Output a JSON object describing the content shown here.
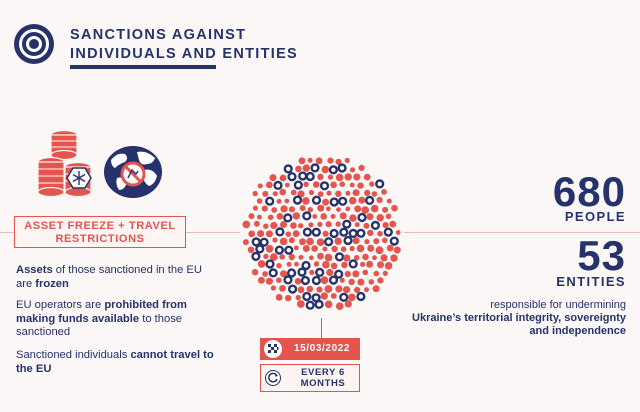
{
  "header": {
    "title_line1": "SANCTIONS AGAINST",
    "title_line2": "INDIVIDUALS AND ENTITIES"
  },
  "icons": {
    "target": "target-icon",
    "coins": "frozen-coins-icon",
    "globe": "travel-ban-globe-icon",
    "flag": "checkered-flag-icon",
    "renew": "renew-cycle-icon"
  },
  "measure": {
    "label_line1": "ASSET FREEZE + TRAVEL",
    "label_line2": "RESTRICTIONS"
  },
  "details": [
    {
      "bold1": "Assets",
      "text1": " of those sanctioned in the EU are ",
      "bold2": "frozen",
      "text2": ""
    },
    {
      "bold1": "",
      "text1": "EU operators are ",
      "bold2": "prohibited from making funds available",
      "text2": " to those sanctioned"
    },
    {
      "bold1": "",
      "text1": "Sanctioned individuals ",
      "bold2": "cannot travel to the EU",
      "text2": ""
    }
  ],
  "timeline": {
    "date": "15/03/2022",
    "renewal": "EVERY 6 MONTHS"
  },
  "stats": {
    "people_count": "680",
    "people_label": "PEOPLE",
    "entities_count": "53",
    "entities_label": "ENTITIES",
    "responsibility_text": "responsible for undermining",
    "responsibility_bold": "Ukraine’s territorial integrity, sovereignty and independence"
  },
  "colors": {
    "navy": "#26326b",
    "red": "#e4554e",
    "background": "#fbf7f6"
  }
}
